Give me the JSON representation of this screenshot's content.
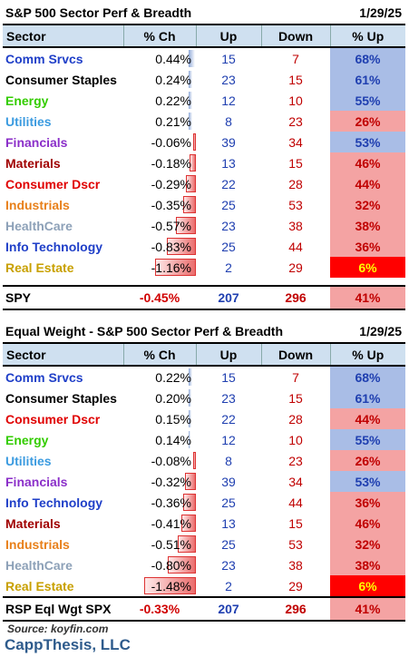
{
  "table1": {
    "title": "S&P 500 Sector Perf & Breadth",
    "date": "1/29/25",
    "headers": {
      "sector": "Sector",
      "pct_ch": "% Ch",
      "up": "Up",
      "down": "Down",
      "pct_up": "% Up"
    },
    "rows": [
      {
        "sector": "Comm Srvcs",
        "color": "#1f3fc8",
        "pct_ch": "0.44%",
        "ch": 0.44,
        "up": "15",
        "down": "7",
        "pct_up": "68%",
        "tone": "blue"
      },
      {
        "sector": "Consumer Staples",
        "color": "#000000",
        "pct_ch": "0.24%",
        "ch": 0.24,
        "up": "23",
        "down": "15",
        "pct_up": "61%",
        "tone": "blue"
      },
      {
        "sector": "Energy",
        "color": "#33cc00",
        "pct_ch": "0.22%",
        "ch": 0.22,
        "up": "12",
        "down": "10",
        "pct_up": "55%",
        "tone": "blue"
      },
      {
        "sector": "Utilities",
        "color": "#3b9be0",
        "pct_ch": "0.21%",
        "ch": 0.21,
        "up": "8",
        "down": "23",
        "pct_up": "26%",
        "tone": "lred"
      },
      {
        "sector": "Financials",
        "color": "#8b2fc9",
        "pct_ch": "-0.06%",
        "ch": -0.06,
        "up": "39",
        "down": "34",
        "pct_up": "53%",
        "tone": "blue"
      },
      {
        "sector": "Materials",
        "color": "#a00000",
        "pct_ch": "-0.18%",
        "ch": -0.18,
        "up": "13",
        "down": "15",
        "pct_up": "46%",
        "tone": "lred"
      },
      {
        "sector": "Consumer Dscr",
        "color": "#e00000",
        "pct_ch": "-0.29%",
        "ch": -0.29,
        "up": "22",
        "down": "28",
        "pct_up": "44%",
        "tone": "lred"
      },
      {
        "sector": "Industrials",
        "color": "#e8801a",
        "pct_ch": "-0.35%",
        "ch": -0.35,
        "up": "25",
        "down": "53",
        "pct_up": "32%",
        "tone": "lred"
      },
      {
        "sector": "HealthCare",
        "color": "#8da1b8",
        "pct_ch": "-0.57%",
        "ch": -0.57,
        "up": "23",
        "down": "38",
        "pct_up": "38%",
        "tone": "lred"
      },
      {
        "sector": "Info Technology",
        "color": "#1f3fc8",
        "pct_ch": "-0.83%",
        "ch": -0.83,
        "up": "25",
        "down": "44",
        "pct_up": "36%",
        "tone": "lred"
      },
      {
        "sector": "Real Estate",
        "color": "#c8a000",
        "pct_ch": "-1.16%",
        "ch": -1.16,
        "up": "2",
        "down": "29",
        "pct_up": "6%",
        "tone": "red"
      }
    ],
    "footer": {
      "label": "SPY",
      "pct_ch": "-0.45%",
      "up": "207",
      "down": "296",
      "pct_up": "41%"
    }
  },
  "table2": {
    "title": "Equal Weight - S&P 500 Sector Perf & Breadth",
    "date": "1/29/25",
    "headers": {
      "sector": "Sector",
      "pct_ch": "% Ch",
      "up": "Up",
      "down": "Down",
      "pct_up": "% Up"
    },
    "rows": [
      {
        "sector": "Comm Srvcs",
        "color": "#1f3fc8",
        "pct_ch": "0.22%",
        "ch": 0.22,
        "up": "15",
        "down": "7",
        "pct_up": "68%",
        "tone": "blue"
      },
      {
        "sector": "Consumer Staples",
        "color": "#000000",
        "pct_ch": "0.20%",
        "ch": 0.2,
        "up": "23",
        "down": "15",
        "pct_up": "61%",
        "tone": "blue"
      },
      {
        "sector": "Consumer Dscr",
        "color": "#e00000",
        "pct_ch": "0.15%",
        "ch": 0.15,
        "up": "22",
        "down": "28",
        "pct_up": "44%",
        "tone": "lred"
      },
      {
        "sector": "Energy",
        "color": "#33cc00",
        "pct_ch": "0.14%",
        "ch": 0.14,
        "up": "12",
        "down": "10",
        "pct_up": "55%",
        "tone": "blue"
      },
      {
        "sector": "Utilities",
        "color": "#3b9be0",
        "pct_ch": "-0.08%",
        "ch": -0.08,
        "up": "8",
        "down": "23",
        "pct_up": "26%",
        "tone": "lred"
      },
      {
        "sector": "Financials",
        "color": "#8b2fc9",
        "pct_ch": "-0.32%",
        "ch": -0.32,
        "up": "39",
        "down": "34",
        "pct_up": "53%",
        "tone": "blue"
      },
      {
        "sector": "Info Technology",
        "color": "#1f3fc8",
        "pct_ch": "-0.36%",
        "ch": -0.36,
        "up": "25",
        "down": "44",
        "pct_up": "36%",
        "tone": "lred"
      },
      {
        "sector": "Materials",
        "color": "#a00000",
        "pct_ch": "-0.41%",
        "ch": -0.41,
        "up": "13",
        "down": "15",
        "pct_up": "46%",
        "tone": "lred"
      },
      {
        "sector": "Industrials",
        "color": "#e8801a",
        "pct_ch": "-0.51%",
        "ch": -0.51,
        "up": "25",
        "down": "53",
        "pct_up": "32%",
        "tone": "lred"
      },
      {
        "sector": "HealthCare",
        "color": "#8da1b8",
        "pct_ch": "-0.80%",
        "ch": -0.8,
        "up": "23",
        "down": "38",
        "pct_up": "38%",
        "tone": "lred"
      },
      {
        "sector": "Real Estate",
        "color": "#c8a000",
        "pct_ch": "-1.48%",
        "ch": -1.48,
        "up": "2",
        "down": "29",
        "pct_up": "6%",
        "tone": "red"
      }
    ],
    "footer": {
      "label": "RSP Eql Wgt SPX",
      "pct_ch": "-0.33%",
      "up": "207",
      "down": "296",
      "pct_up": "41%"
    }
  },
  "source": "Source: koyfin.com",
  "brand": "CappThesis, LLC"
}
